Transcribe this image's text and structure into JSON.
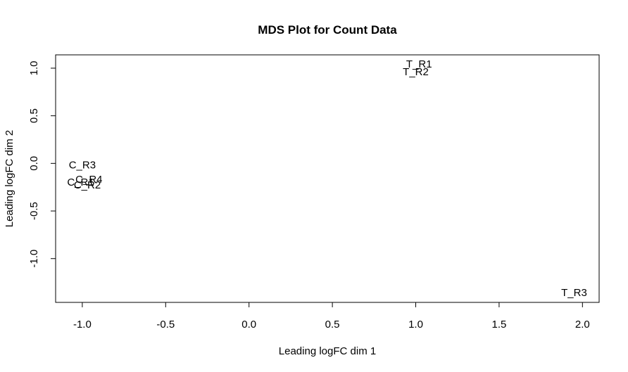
{
  "chart_data": {
    "type": "scatter",
    "title": "MDS Plot for Count Data",
    "xlabel": "Leading logFC dim 1",
    "ylabel": "Leading logFC dim 2",
    "xlim": [
      -1.16,
      2.1
    ],
    "ylim": [
      -1.46,
      1.14
    ],
    "x_ticks": [
      -1.0,
      -0.5,
      0.0,
      0.5,
      1.0,
      1.5,
      2.0
    ],
    "x_tick_labels": [
      "-1.0",
      "-0.5",
      "0.0",
      "0.5",
      "1.0",
      "1.5",
      "2.0"
    ],
    "y_ticks": [
      -1.0,
      -0.5,
      0.0,
      0.5,
      1.0
    ],
    "y_tick_labels": [
      "-1.0",
      "-0.5",
      "0.0",
      "0.5",
      "1.0"
    ],
    "grid": false,
    "points": [
      {
        "label": "T_R1",
        "x": 1.02,
        "y": 1.04
      },
      {
        "label": "T_R2",
        "x": 1.0,
        "y": 0.96
      },
      {
        "label": "C_R3",
        "x": -1.0,
        "y": -0.02
      },
      {
        "label": "C_R4",
        "x": -0.96,
        "y": -0.17
      },
      {
        "label": "C_R1",
        "x": -1.01,
        "y": -0.2
      },
      {
        "label": "C_R2",
        "x": -0.97,
        "y": -0.23
      },
      {
        "label": "T_R3",
        "x": 1.95,
        "y": -1.36
      }
    ]
  }
}
